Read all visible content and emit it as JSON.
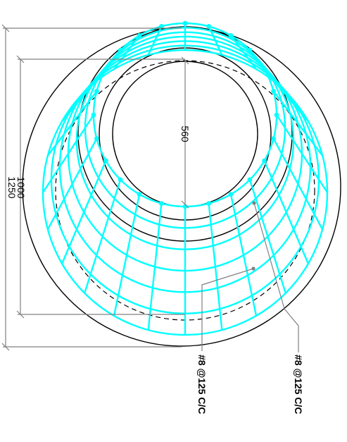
{
  "colors": {
    "background": "#ffffff",
    "outline": "#000000",
    "rebar": "#00ffff",
    "dimension": "#808080"
  },
  "dimensions": {
    "outer_diameter": "1250",
    "base_diameter": "1000",
    "inner_diameter": "560"
  },
  "notes": {
    "rebar_1": "#8 @125 C/C",
    "rebar_2": "#8 @125 C/C"
  }
}
